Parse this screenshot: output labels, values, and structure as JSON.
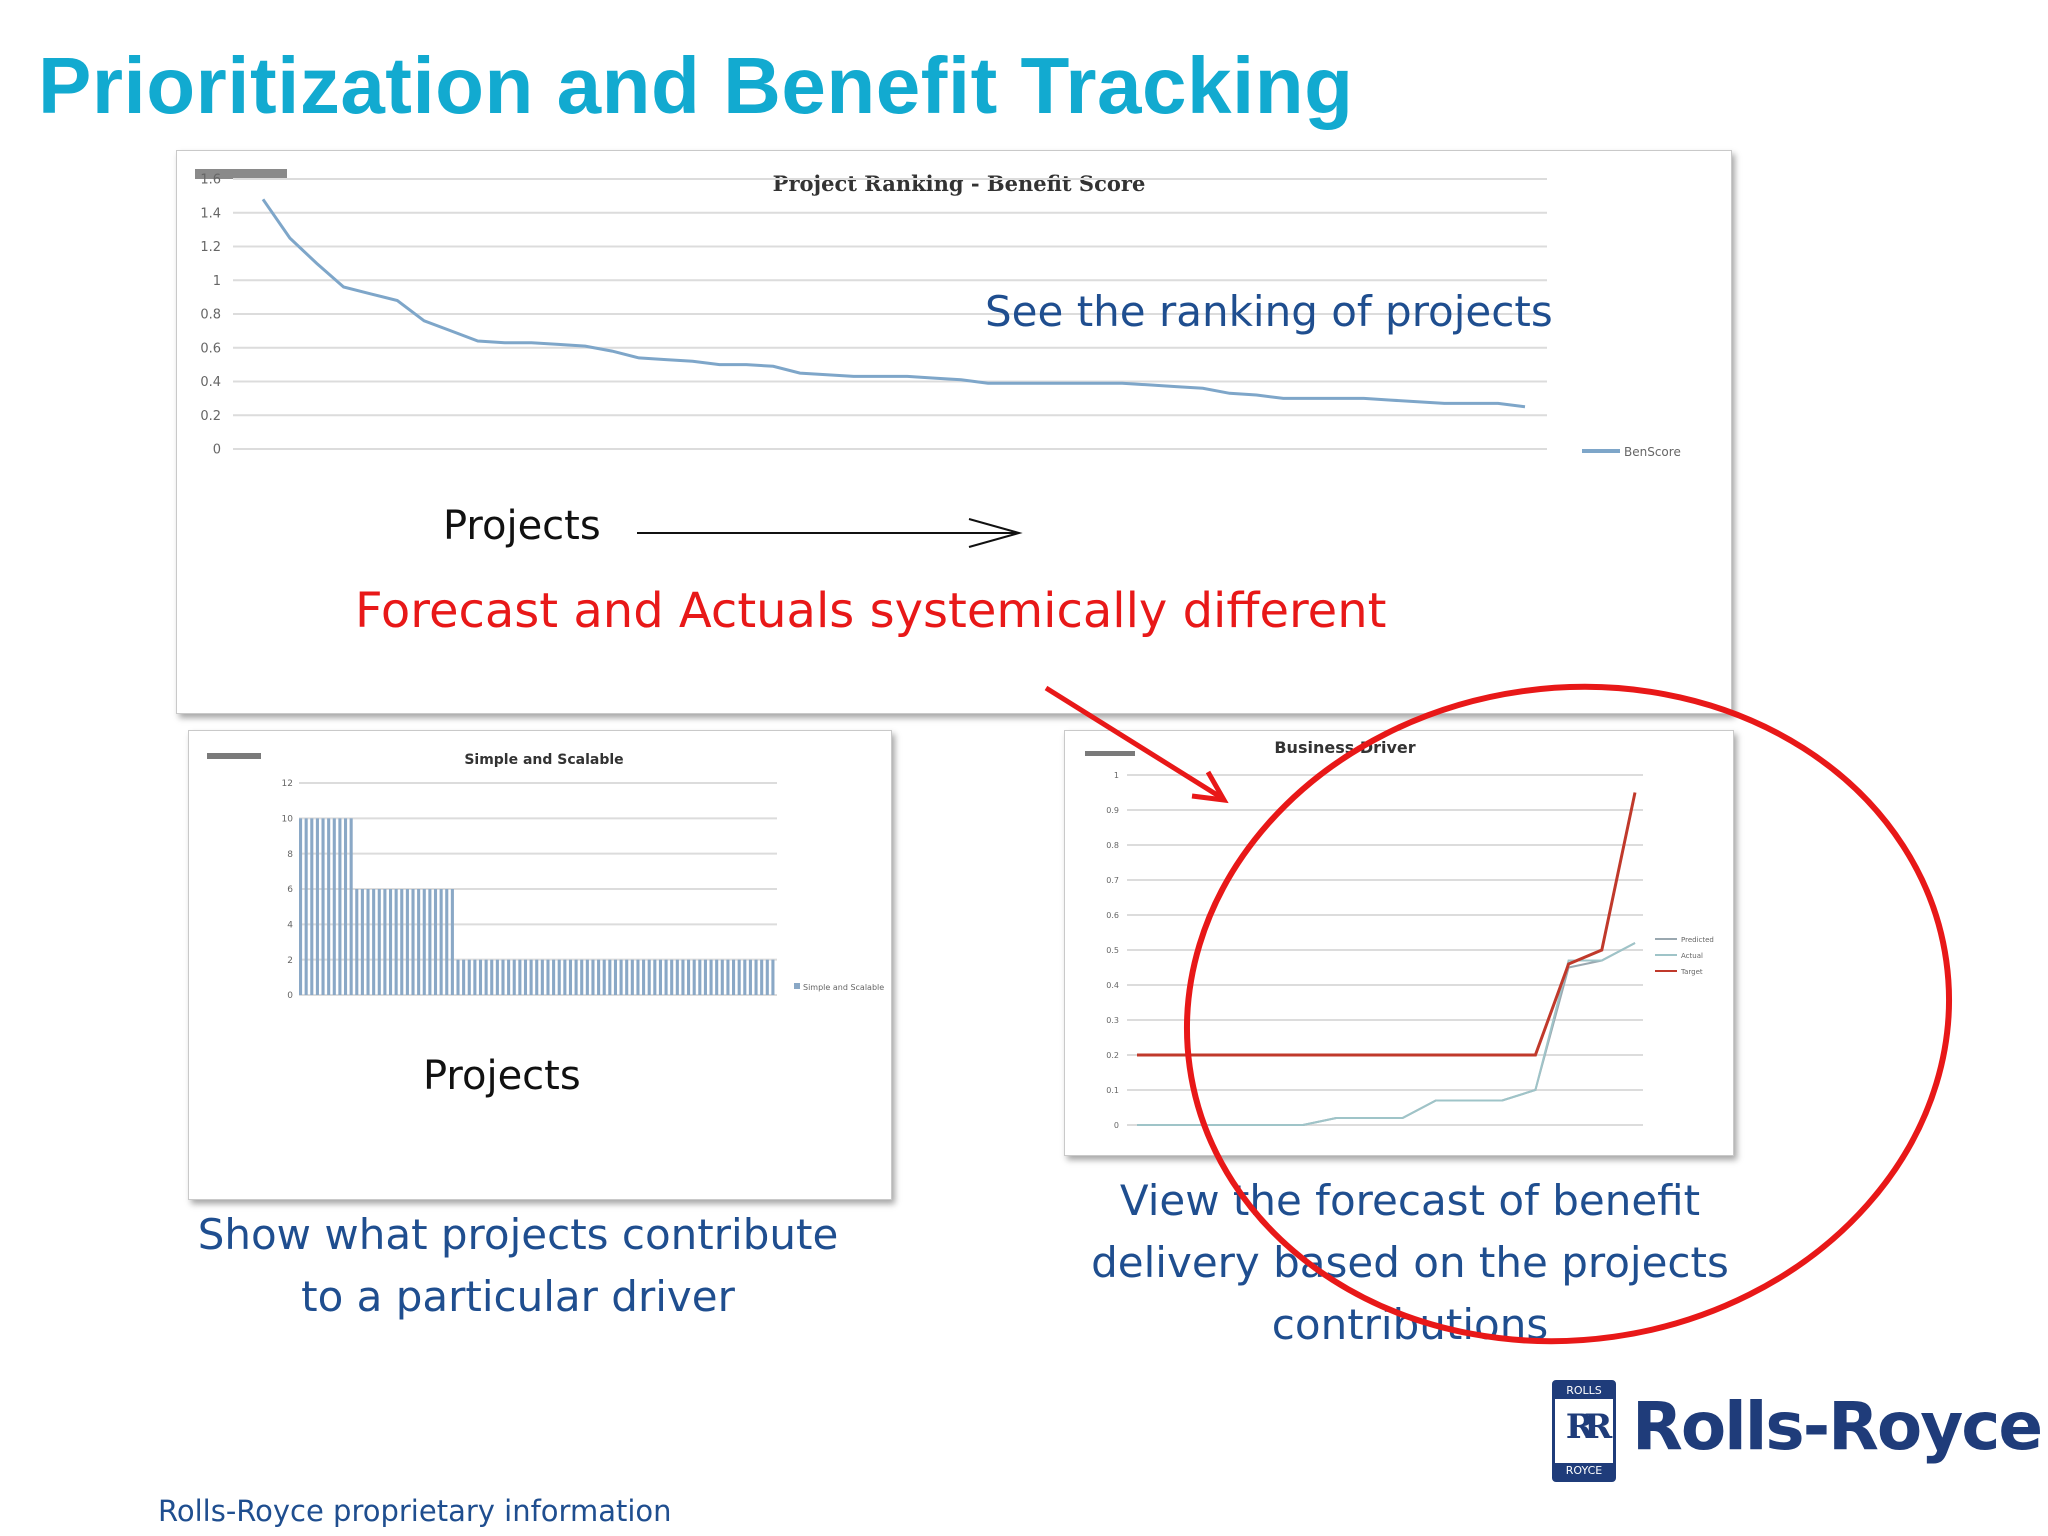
{
  "slide": {
    "title": "Prioritization and Benefit Tracking",
    "ranking_caption": "See the ranking of projects",
    "projects_label_top": "Projects",
    "forecast_callout": "Forecast and Actuals systemically different",
    "projects_label_bottom": "Projects",
    "driver_caption_lines": [
      "Show what projects contribute",
      "to a particular driver"
    ],
    "forecast_caption_lines": [
      "View the forecast of benefit",
      "delivery based on the projects",
      "contributions"
    ],
    "footer": "Rolls-Royce proprietary information",
    "brand": {
      "name": "Rolls-Royce",
      "badge_top": "ROLLS",
      "badge_bottom": "ROYCE",
      "monogram": "RR"
    },
    "colors": {
      "title": "#12aad0",
      "caption": "#1f4e8f",
      "callout": "#e81818",
      "brand": "#1f3c7a"
    }
  },
  "chart_data": [
    {
      "type": "line",
      "title": "Project Ranking - Benefit Score",
      "ylim": [
        0,
        1.6
      ],
      "yticks": [
        "0",
        "0.2",
        "0.4",
        "0.6",
        "0.8",
        "1",
        "1.2",
        "1.4",
        "1.6"
      ],
      "legend": "right",
      "grid": true,
      "series": [
        {
          "name": "BenScore",
          "color": "#7ea6c9",
          "values": [
            1.48,
            1.25,
            1.1,
            0.96,
            0.92,
            0.88,
            0.76,
            0.7,
            0.64,
            0.63,
            0.63,
            0.62,
            0.61,
            0.58,
            0.54,
            0.53,
            0.52,
            0.5,
            0.5,
            0.49,
            0.45,
            0.44,
            0.43,
            0.43,
            0.43,
            0.42,
            0.41,
            0.39,
            0.39,
            0.39,
            0.39,
            0.39,
            0.39,
            0.38,
            0.37,
            0.36,
            0.33,
            0.32,
            0.3,
            0.3,
            0.3,
            0.3,
            0.29,
            0.28,
            0.27,
            0.27,
            0.27,
            0.25
          ]
        }
      ]
    },
    {
      "type": "bar",
      "title": "Simple and Scalable",
      "ylim": [
        0,
        12
      ],
      "yticks": [
        "0",
        "2",
        "4",
        "6",
        "8",
        "10",
        "12"
      ],
      "legend": "right",
      "grid": true,
      "series": [
        {
          "name": "Simple and Scalable",
          "color": "#8aa8c6",
          "values": [
            10,
            10,
            10,
            10,
            10,
            10,
            10,
            10,
            10,
            10,
            6,
            6,
            6,
            6,
            6,
            6,
            6,
            6,
            6,
            6,
            6,
            6,
            6,
            6,
            6,
            6,
            6,
            6,
            2,
            2,
            2,
            2,
            2,
            2,
            2,
            2,
            2,
            2,
            2,
            2,
            2,
            2,
            2,
            2,
            2,
            2,
            2,
            2,
            2,
            2,
            2,
            2,
            2,
            2,
            2,
            2,
            2,
            2,
            2,
            2,
            2,
            2,
            2,
            2,
            2,
            2,
            2,
            2,
            2,
            2,
            2,
            2,
            2,
            2,
            2,
            2,
            2,
            2,
            2,
            2,
            2,
            2,
            2,
            2,
            2
          ]
        }
      ]
    },
    {
      "type": "line",
      "title": "Business Driver",
      "ylim": [
        0,
        1
      ],
      "yticks": [
        "0",
        "0.1",
        "0.2",
        "0.3",
        "0.4",
        "0.5",
        "0.6",
        "0.7",
        "0.8",
        "0.9",
        "1"
      ],
      "legend": "right",
      "grid": true,
      "series": [
        {
          "name": "Predicted",
          "color": "#9aa8b0",
          "values": [
            0,
            0,
            0,
            0,
            0,
            0,
            0.02,
            0.02,
            0.02,
            0.07,
            0.07,
            0.07,
            0.1,
            0.45,
            0.47,
            0.52
          ]
        },
        {
          "name": "Actual",
          "color": "#9fc4c8",
          "values": [
            0,
            0,
            0,
            0,
            0,
            0,
            0.02,
            0.02,
            0.02,
            0.07,
            0.07,
            0.07,
            0.1,
            0.47,
            0.47,
            0.52
          ]
        },
        {
          "name": "Target",
          "color": "#c0392b",
          "values": [
            0.2,
            0.2,
            0.2,
            0.2,
            0.2,
            0.2,
            0.2,
            0.2,
            0.2,
            0.2,
            0.2,
            0.2,
            0.2,
            0.46,
            0.5,
            0.95
          ]
        }
      ]
    }
  ]
}
